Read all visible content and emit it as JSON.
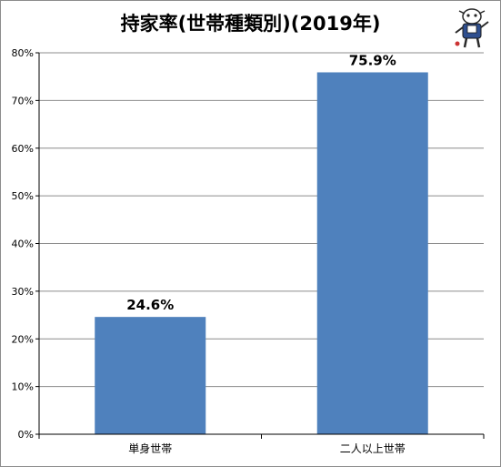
{
  "chart_data": {
    "type": "bar",
    "title": "持家率(世帯種類別)(2019年)",
    "categories": [
      "単身世帯",
      "二人以上世帯"
    ],
    "values": [
      24.6,
      75.9
    ],
    "data_labels": [
      "24.6%",
      "75.9%"
    ],
    "ylim": [
      0,
      80
    ],
    "yticks": [
      0,
      10,
      20,
      30,
      40,
      50,
      60,
      70,
      80
    ],
    "ytick_labels": [
      "0%",
      "10%",
      "20%",
      "30%",
      "40%",
      "50%",
      "60%",
      "70%",
      "80%"
    ],
    "xlabel": "",
    "ylabel": "",
    "grid": true,
    "bar_color": "#4f81bd",
    "grid_color": "#8c8c8c"
  },
  "mascot": {
    "icon": "cartoon-mascot-icon"
  }
}
